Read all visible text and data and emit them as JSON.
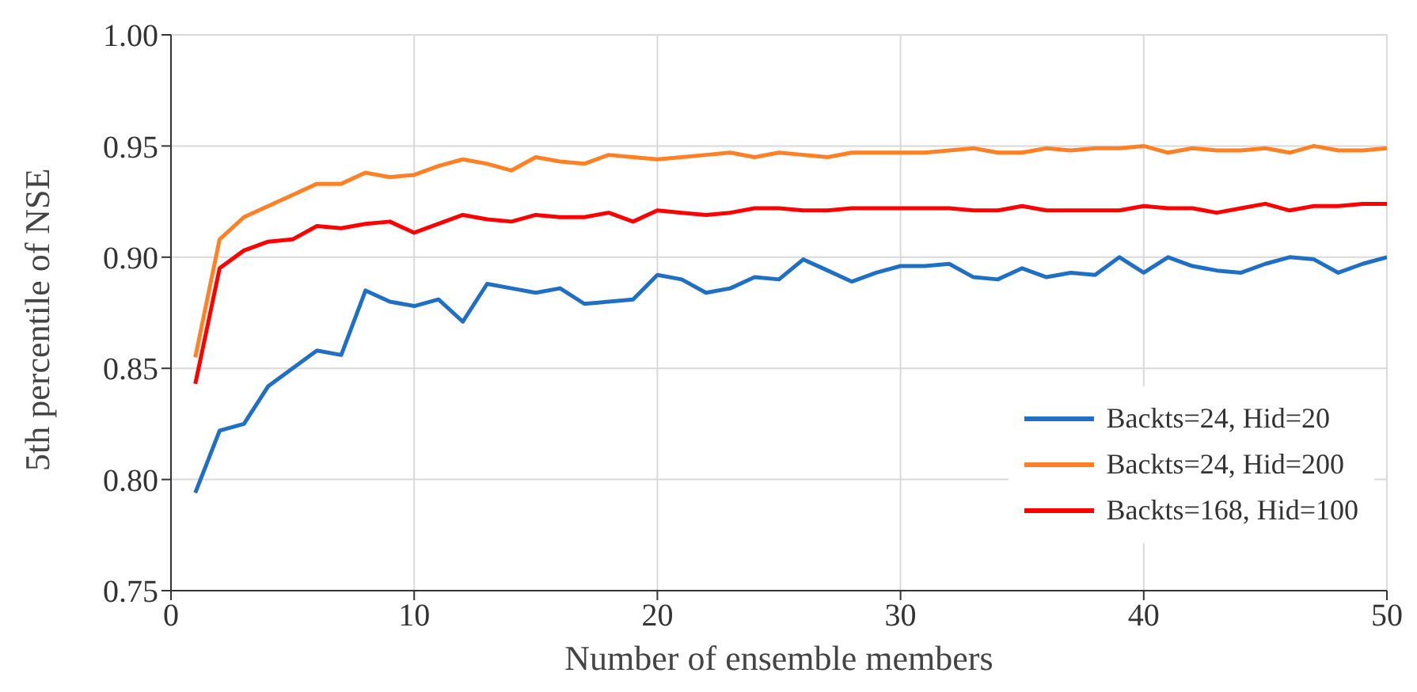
{
  "chart_data": {
    "type": "line",
    "xlabel": "Number of ensemble members",
    "ylabel": "5th percentile of NSE",
    "x": [
      1,
      2,
      3,
      4,
      5,
      6,
      7,
      8,
      9,
      10,
      11,
      12,
      13,
      14,
      15,
      16,
      17,
      18,
      19,
      20,
      21,
      22,
      23,
      24,
      25,
      26,
      27,
      28,
      29,
      30,
      31,
      32,
      33,
      34,
      35,
      36,
      37,
      38,
      39,
      40,
      41,
      42,
      43,
      44,
      45,
      46,
      47,
      48,
      49,
      50
    ],
    "series": [
      {
        "name": "Backts=24, Hid=20",
        "color": "#1f6fc5",
        "values": [
          0.794,
          0.822,
          0.825,
          0.842,
          0.85,
          0.858,
          0.856,
          0.885,
          0.88,
          0.878,
          0.881,
          0.871,
          0.888,
          0.886,
          0.884,
          0.886,
          0.879,
          0.88,
          0.881,
          0.892,
          0.89,
          0.884,
          0.886,
          0.891,
          0.89,
          0.899,
          0.894,
          0.889,
          0.893,
          0.896,
          0.896,
          0.897,
          0.891,
          0.89,
          0.895,
          0.891,
          0.893,
          0.892,
          0.9,
          0.893,
          0.9,
          0.896,
          0.894,
          0.893,
          0.897,
          0.9,
          0.899,
          0.893,
          0.897,
          0.9
        ]
      },
      {
        "name": "Backts=24, Hid=200",
        "color": "#ff8025",
        "values": [
          0.855,
          0.908,
          0.918,
          0.923,
          0.928,
          0.933,
          0.933,
          0.938,
          0.936,
          0.937,
          0.941,
          0.944,
          0.942,
          0.939,
          0.945,
          0.943,
          0.942,
          0.946,
          0.945,
          0.944,
          0.945,
          0.946,
          0.947,
          0.945,
          0.947,
          0.946,
          0.945,
          0.947,
          0.947,
          0.947,
          0.947,
          0.948,
          0.949,
          0.947,
          0.947,
          0.949,
          0.948,
          0.949,
          0.949,
          0.95,
          0.947,
          0.949,
          0.948,
          0.948,
          0.949,
          0.947,
          0.95,
          0.948,
          0.948,
          0.949
        ]
      },
      {
        "name": "Backts=168, Hid=100",
        "color": "#ff0000",
        "values": [
          0.843,
          0.895,
          0.903,
          0.907,
          0.908,
          0.914,
          0.913,
          0.915,
          0.916,
          0.911,
          0.915,
          0.919,
          0.917,
          0.916,
          0.919,
          0.918,
          0.918,
          0.92,
          0.916,
          0.921,
          0.92,
          0.919,
          0.92,
          0.922,
          0.922,
          0.921,
          0.921,
          0.922,
          0.922,
          0.922,
          0.922,
          0.922,
          0.921,
          0.921,
          0.923,
          0.921,
          0.921,
          0.921,
          0.921,
          0.923,
          0.922,
          0.922,
          0.92,
          0.922,
          0.924,
          0.921,
          0.923,
          0.923,
          0.924,
          0.924
        ]
      }
    ],
    "xlim": [
      0,
      50
    ],
    "xticks": [
      0,
      10,
      20,
      30,
      40,
      50
    ],
    "ylim": [
      0.75,
      1.0
    ],
    "yticks": [
      {
        "value": 0.75,
        "label": "0.75"
      },
      {
        "value": 0.8,
        "label": "0.80"
      },
      {
        "value": 0.85,
        "label": "0.85"
      },
      {
        "value": 0.9,
        "label": "0.90"
      },
      {
        "value": 0.95,
        "label": "0.95"
      },
      {
        "value": 1.0,
        "label": "1.00"
      }
    ],
    "grid": true,
    "legend": "bottom right",
    "marker": "none",
    "line_style": "solid"
  }
}
